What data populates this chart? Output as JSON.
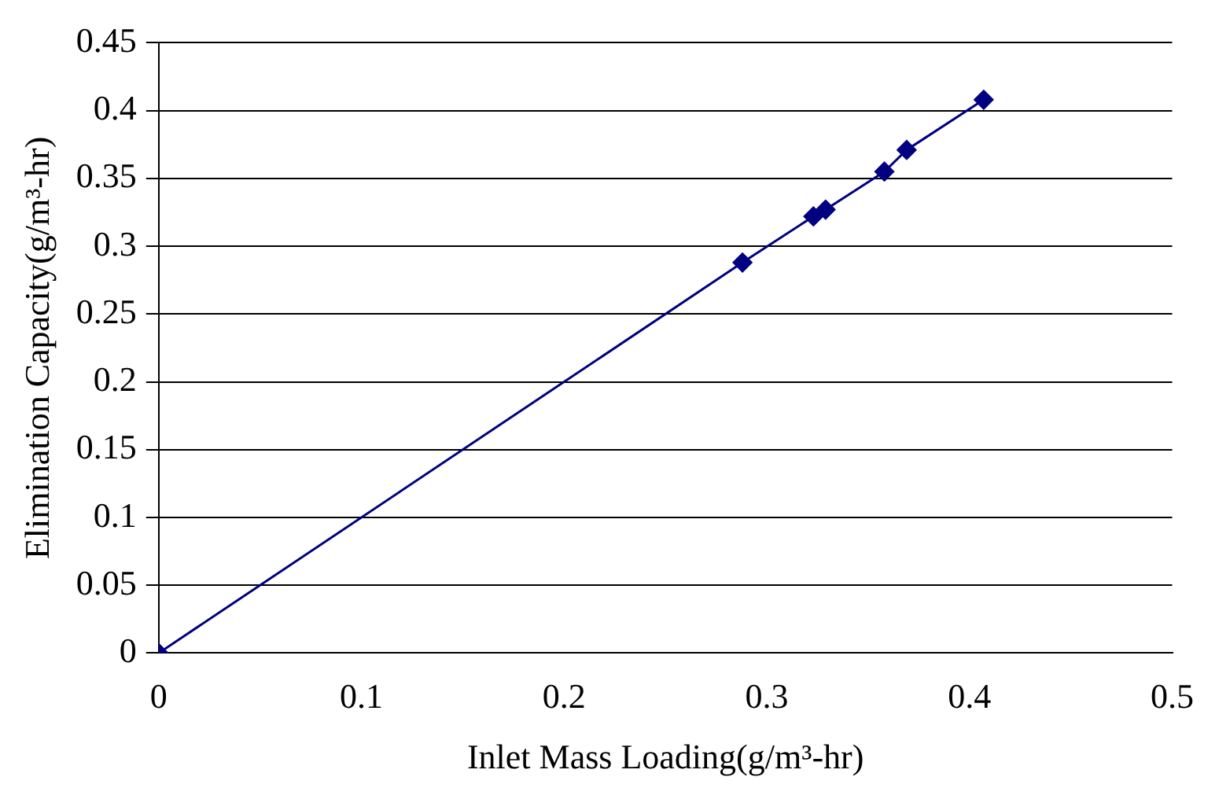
{
  "chart_data": {
    "type": "scatter",
    "xlabel": "Inlet Mass Loading(g/m³-hr)",
    "ylabel": "Elimination Capacity(g/m³-hr)",
    "series": [
      {
        "type": "line",
        "color": "#000080",
        "x": [
          0,
          0.288,
          0.323,
          0.329,
          0.358,
          0.369,
          0.407
        ],
        "values": [
          0,
          0.288,
          0.322,
          0.327,
          0.355,
          0.371,
          0.408
        ]
      }
    ],
    "xlim": [
      0,
      0.5
    ],
    "xticks": [
      0,
      0.1,
      0.2,
      0.3,
      0.4,
      0.5
    ],
    "ylim": [
      0,
      0.45
    ],
    "yticks": [
      0,
      0.05,
      0.1,
      0.15,
      0.2,
      0.25,
      0.3,
      0.35,
      0.4,
      0.45
    ],
    "grid": "y",
    "legend": false,
    "marker": "diamond",
    "line_style": "solid"
  }
}
